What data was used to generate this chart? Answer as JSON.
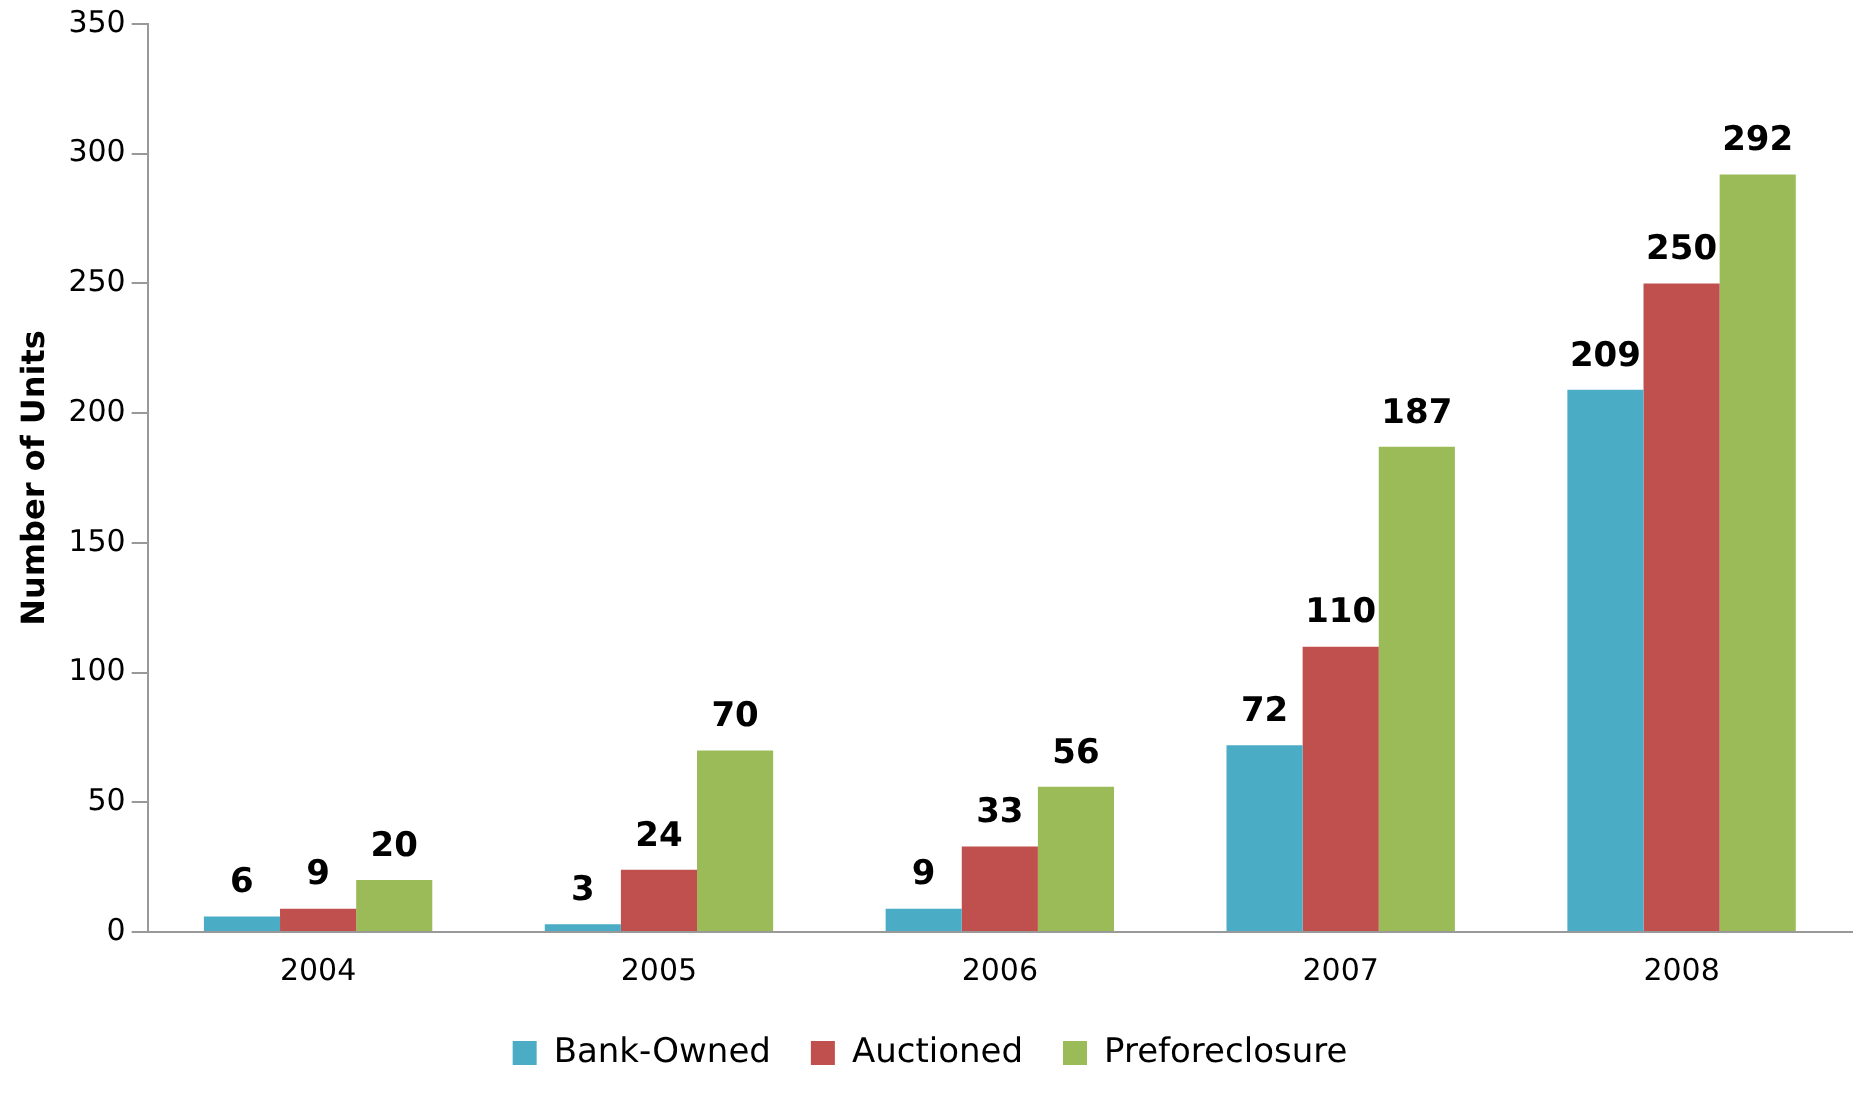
{
  "chart_data": {
    "type": "bar",
    "ylabel": "Number of Units",
    "categories": [
      "2004",
      "2005",
      "2006",
      "2007",
      "2008"
    ],
    "series": [
      {
        "name": "Bank-Owned",
        "color": "#4bacc6",
        "values": [
          6,
          3,
          9,
          72,
          209
        ]
      },
      {
        "name": "Auctioned",
        "color": "#c0504d",
        "values": [
          9,
          24,
          33,
          110,
          250
        ]
      },
      {
        "name": "Preforeclosure",
        "color": "#9bbb59",
        "values": [
          20,
          70,
          56,
          187,
          292
        ]
      }
    ],
    "ylim": [
      0,
      350
    ],
    "yticks": [
      0,
      50,
      100,
      150,
      200,
      250,
      300,
      350
    ],
    "grid": false,
    "legend": "bottom",
    "data_labels": true
  }
}
